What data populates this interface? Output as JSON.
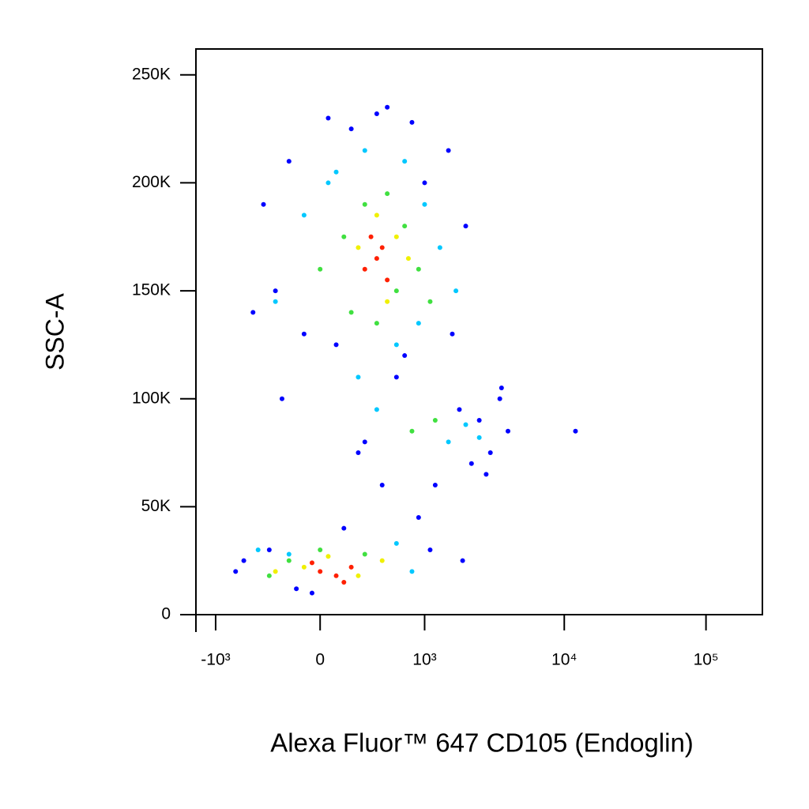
{
  "chart_data": {
    "type": "scatter",
    "x_label": "Alexa Fluor™ 647 CD105 (Endoglin)",
    "y_label": "SSC-A",
    "x_scale": "biexponential",
    "xlim": [
      -1400,
      250000
    ],
    "xticks": [
      {
        "value": -1000,
        "label": "-10³"
      },
      0,
      {
        "value": 1000,
        "label": "10³"
      },
      {
        "value": 10000,
        "label": "10⁴"
      },
      {
        "value": 100000,
        "label": "10⁵"
      }
    ],
    "ylim": [
      0,
      262000
    ],
    "yticks": [
      0,
      {
        "value": 50000,
        "label": "50K"
      },
      {
        "value": 100000,
        "label": "100K"
      },
      {
        "value": 150000,
        "label": "150K"
      },
      {
        "value": 200000,
        "label": "200K"
      },
      {
        "value": 250000,
        "label": "250K"
      }
    ],
    "series": [
      {
        "color": "#0000ff",
        "x": [
          -600,
          -400,
          -200,
          -100,
          50,
          200,
          400,
          800,
          1500,
          2000,
          -300,
          100,
          600,
          1200,
          1800,
          2500,
          3000,
          3500,
          900,
          300,
          -500,
          -700,
          -150,
          500,
          1000,
          700,
          1600,
          2200,
          2800,
          4000,
          3600,
          12000,
          -250,
          150,
          450,
          1100,
          1900,
          -350,
          -50,
          250
        ],
        "values": [
          25000,
          190000,
          210000,
          130000,
          230000,
          225000,
          232000,
          228000,
          215000,
          180000,
          150000,
          125000,
          110000,
          60000,
          95000,
          90000,
          75000,
          100000,
          45000,
          80000,
          140000,
          20000,
          12000,
          235000,
          200000,
          120000,
          130000,
          70000,
          65000,
          85000,
          105000,
          85000,
          100000,
          40000,
          60000,
          30000,
          25000,
          30000,
          10000,
          75000
        ]
      },
      {
        "color": "#00c8ff",
        "x": [
          -300,
          -100,
          100,
          300,
          700,
          1000,
          1300,
          1700,
          900,
          600,
          2000,
          400,
          -450,
          -200,
          600,
          800,
          1500,
          2500,
          50,
          250
        ],
        "values": [
          145000,
          185000,
          205000,
          215000,
          210000,
          190000,
          170000,
          150000,
          135000,
          125000,
          88000,
          95000,
          30000,
          28000,
          33000,
          20000,
          80000,
          82000,
          200000,
          110000
        ]
      },
      {
        "color": "#40e040",
        "x": [
          0,
          150,
          300,
          500,
          700,
          900,
          1100,
          200,
          400,
          -200,
          -350,
          0,
          300,
          1200,
          800,
          600
        ],
        "values": [
          160000,
          175000,
          190000,
          195000,
          180000,
          160000,
          145000,
          140000,
          135000,
          25000,
          18000,
          30000,
          28000,
          90000,
          85000,
          150000
        ]
      },
      {
        "color": "#f0f000",
        "x": [
          250,
          400,
          600,
          750,
          500,
          -100,
          50,
          250,
          -300,
          450
        ],
        "values": [
          170000,
          185000,
          175000,
          165000,
          145000,
          22000,
          27000,
          18000,
          20000,
          25000
        ]
      },
      {
        "color": "#ff2000",
        "x": [
          300,
          400,
          500,
          350,
          450,
          0,
          100,
          200,
          -50,
          150
        ],
        "values": [
          160000,
          165000,
          155000,
          175000,
          170000,
          20000,
          18000,
          22000,
          24000,
          15000
        ]
      }
    ]
  }
}
